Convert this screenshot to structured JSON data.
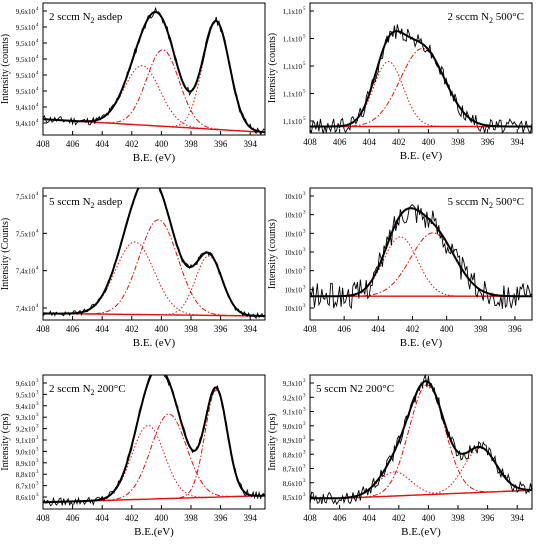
{
  "figure": {
    "panels": [
      {
        "id": "p1",
        "title": "2 sccm N",
        "title_sub": "2",
        "title_rest": " asdep",
        "title_pos": "left",
        "ylabel": "Intensity (counts)",
        "xlabel": "B.E. (eV)",
        "xticks": [
          "408",
          "406",
          "404",
          "402",
          "400",
          "398",
          "396",
          "394"
        ],
        "yticks": [
          {
            "m": "9,4x10",
            "e": "4"
          },
          {
            "m": "9,4x10",
            "e": "4"
          },
          {
            "m": "9,5x10",
            "e": "4"
          },
          {
            "m": "9,5x10",
            "e": "4"
          },
          {
            "m": "9,5x10",
            "e": "4"
          },
          {
            "m": "9,5x10",
            "e": "4"
          },
          {
            "m": "9,5x10",
            "e": "4"
          },
          {
            "m": "9,6x10",
            "e": "4"
          }
        ]
      },
      {
        "id": "p2",
        "title": "2 sccm N",
        "title_sub": "2",
        "title_rest": " 500°C",
        "title_pos": "right",
        "ylabel": "Intensity (counts)",
        "xlabel": "B.E. (eV)",
        "xticks": [
          "408",
          "406",
          "404",
          "402",
          "400",
          "398",
          "396",
          "394"
        ],
        "yticks": [
          {
            "m": "1,1x10",
            "e": "5"
          },
          {
            "m": "1,1x10",
            "e": "5"
          },
          {
            "m": "1,1x10",
            "e": "5"
          },
          {
            "m": "1,1x10",
            "e": "5"
          },
          {
            "m": "1,1x10",
            "e": "5"
          }
        ]
      },
      {
        "id": "p3",
        "title": "5 sccm N",
        "title_sub": "2",
        "title_rest": " asdep",
        "title_pos": "left",
        "ylabel": "Intensity (Counts)",
        "xlabel": "B.E. (eV)",
        "xticks": [
          "408",
          "406",
          "404",
          "402",
          "400",
          "398",
          "396",
          "394"
        ],
        "yticks": [
          {
            "m": "7,4x10",
            "e": "4"
          },
          {
            "m": "7,4x10",
            "e": "4"
          },
          {
            "m": "7,5x10",
            "e": "4"
          },
          {
            "m": "7,5x10",
            "e": "4"
          }
        ]
      },
      {
        "id": "p4",
        "title": "5 sccm N",
        "title_sub": "2",
        "title_rest": " 500°C",
        "title_pos": "right",
        "ylabel": "Intensity (counts)",
        "xlabel": "B.E. (eV)",
        "xticks": [
          "408",
          "406",
          "404",
          "402",
          "400",
          "398",
          "396"
        ],
        "yticks": [
          {
            "m": "10x10",
            "e": "3"
          },
          {
            "m": "10x10",
            "e": "3"
          },
          {
            "m": "10x10",
            "e": "3"
          },
          {
            "m": "10x10",
            "e": "3"
          },
          {
            "m": "10x10",
            "e": "3"
          },
          {
            "m": "10x10",
            "e": "3"
          },
          {
            "m": "10x10",
            "e": "3"
          }
        ]
      },
      {
        "id": "p5",
        "title": "2 sccm N",
        "title_sub": "2",
        "title_rest": " 200°C",
        "title_pos": "left",
        "ylabel": "Intensity (cps)",
        "xlabel": "B.E.(eV)",
        "xticks": [
          "408",
          "406",
          "404",
          "402",
          "400",
          "398",
          "396",
          "394"
        ],
        "yticks": [
          {
            "m": "8,6x10",
            "e": "3"
          },
          {
            "m": "8,7x10",
            "e": "3"
          },
          {
            "m": "8,8x10",
            "e": "3"
          },
          {
            "m": "8,9x10",
            "e": "3"
          },
          {
            "m": "9,0x10",
            "e": "3"
          },
          {
            "m": "9,1x10",
            "e": "3"
          },
          {
            "m": "9,2x10",
            "e": "3"
          },
          {
            "m": "9,3x10",
            "e": "3"
          },
          {
            "m": "9,4x10",
            "e": "3"
          },
          {
            "m": "9,5x10",
            "e": "3"
          },
          {
            "m": "9,6x10",
            "e": "3"
          }
        ]
      },
      {
        "id": "p6",
        "title": "5 sccm N2 200°C",
        "title_sub": "",
        "title_rest": "",
        "title_pos": "left",
        "ylabel": "Intensity (cps)",
        "xlabel": "B.E.(eV)",
        "xticks": [
          "408",
          "406",
          "404",
          "402",
          "400",
          "398",
          "396",
          "394"
        ],
        "yticks": [
          {
            "m": "8,5x10",
            "e": "3"
          },
          {
            "m": "8,6x10",
            "e": "3"
          },
          {
            "m": "8,7x10",
            "e": "3"
          },
          {
            "m": "8,8x10",
            "e": "3"
          },
          {
            "m": "8,9x10",
            "e": "3"
          },
          {
            "m": "9,0x10",
            "e": "3"
          },
          {
            "m": "9,1x10",
            "e": "3"
          },
          {
            "m": "9,2x10",
            "e": "3"
          },
          {
            "m": "9,3x10",
            "e": "3"
          }
        ]
      }
    ]
  },
  "chart_data": [
    {
      "type": "line",
      "title": "2 sccm N2 asdep",
      "xlabel": "B.E. (eV)",
      "ylabel": "Intensity (counts)",
      "xlim": [
        408,
        393
      ],
      "x_reversed": true,
      "ylim": [
        0,
        1
      ],
      "baseline": [
        [
          408,
          0.12
        ],
        [
          393,
          0.02
        ]
      ],
      "peaks": [
        {
          "center": 401.3,
          "height": 0.45,
          "width": 1.2,
          "style": "dot"
        },
        {
          "center": 399.9,
          "height": 0.58,
          "width": 1.1,
          "style": "dashdot"
        },
        {
          "center": 396.3,
          "height": 0.82,
          "width": 0.9,
          "style": "dot"
        }
      ],
      "noise": 0.03
    },
    {
      "type": "line",
      "title": "2 sccm N2 500°C",
      "xlabel": "B.E. (eV)",
      "ylabel": "Intensity (counts)",
      "xlim": [
        408,
        393
      ],
      "x_reversed": true,
      "ylim": [
        0,
        1
      ],
      "baseline": [
        [
          408,
          0.05
        ],
        [
          393,
          0.05
        ]
      ],
      "peaks": [
        {
          "center": 402.7,
          "height": 0.5,
          "width": 1.0,
          "style": "dot"
        },
        {
          "center": 400.4,
          "height": 0.6,
          "width": 1.5,
          "style": "dashdot"
        }
      ],
      "noise": 0.06
    },
    {
      "type": "line",
      "title": "5 sccm N2 asdep",
      "xlabel": "B.E. (eV)",
      "ylabel": "Intensity (Counts)",
      "xlim": [
        408,
        393
      ],
      "x_reversed": true,
      "ylim": [
        0,
        1
      ],
      "baseline": [
        [
          408,
          0.05
        ],
        [
          393,
          0.03
        ]
      ],
      "peaks": [
        {
          "center": 401.8,
          "height": 0.55,
          "width": 1.3,
          "style": "dot"
        },
        {
          "center": 400.2,
          "height": 0.72,
          "width": 1.3,
          "style": "dashdot"
        },
        {
          "center": 396.8,
          "height": 0.45,
          "width": 0.9,
          "style": "dot"
        }
      ],
      "noise": 0.02
    },
    {
      "type": "line",
      "title": "5 sccm N2 500°C",
      "xlabel": "B.E. (eV)",
      "ylabel": "Intensity (counts)",
      "xlim": [
        408,
        395
      ],
      "x_reversed": true,
      "ylim": [
        0,
        1
      ],
      "baseline": [
        [
          408,
          0.18
        ],
        [
          395,
          0.18
        ]
      ],
      "peaks": [
        {
          "center": 402.7,
          "height": 0.45,
          "width": 1.0,
          "style": "dot"
        },
        {
          "center": 400.8,
          "height": 0.48,
          "width": 1.3,
          "style": "dashdot"
        }
      ],
      "noise": 0.1
    },
    {
      "type": "line",
      "title": "2 sccm N2 200°C",
      "xlabel": "B.E.(eV)",
      "ylabel": "Intensity (cps)",
      "xlim": [
        408,
        393
      ],
      "x_reversed": true,
      "ylim": [
        0,
        1
      ],
      "baseline": [
        [
          408,
          0.05
        ],
        [
          393,
          0.1
        ]
      ],
      "peaks": [
        {
          "center": 400.9,
          "height": 0.55,
          "width": 1.1,
          "style": "dot"
        },
        {
          "center": 399.5,
          "height": 0.63,
          "width": 1.2,
          "style": "dashdot"
        },
        {
          "center": 396.3,
          "height": 0.8,
          "width": 0.75,
          "style": "dashdot"
        }
      ],
      "noise": 0.03
    },
    {
      "type": "line",
      "title": "5 sccm N2 200°C",
      "xlabel": "B.E.(eV)",
      "ylabel": "Intensity (cps)",
      "xlim": [
        408,
        393
      ],
      "x_reversed": true,
      "ylim": [
        0,
        1
      ],
      "baseline": [
        [
          406,
          0.08
        ],
        [
          393,
          0.14
        ]
      ],
      "peaks": [
        {
          "center": 402.3,
          "height": 0.18,
          "width": 1.1,
          "style": "dot"
        },
        {
          "center": 400.1,
          "height": 0.82,
          "width": 1.2,
          "style": "dashdot"
        },
        {
          "center": 396.5,
          "height": 0.33,
          "width": 1.1,
          "style": "dot"
        }
      ],
      "noise": 0.05
    }
  ]
}
